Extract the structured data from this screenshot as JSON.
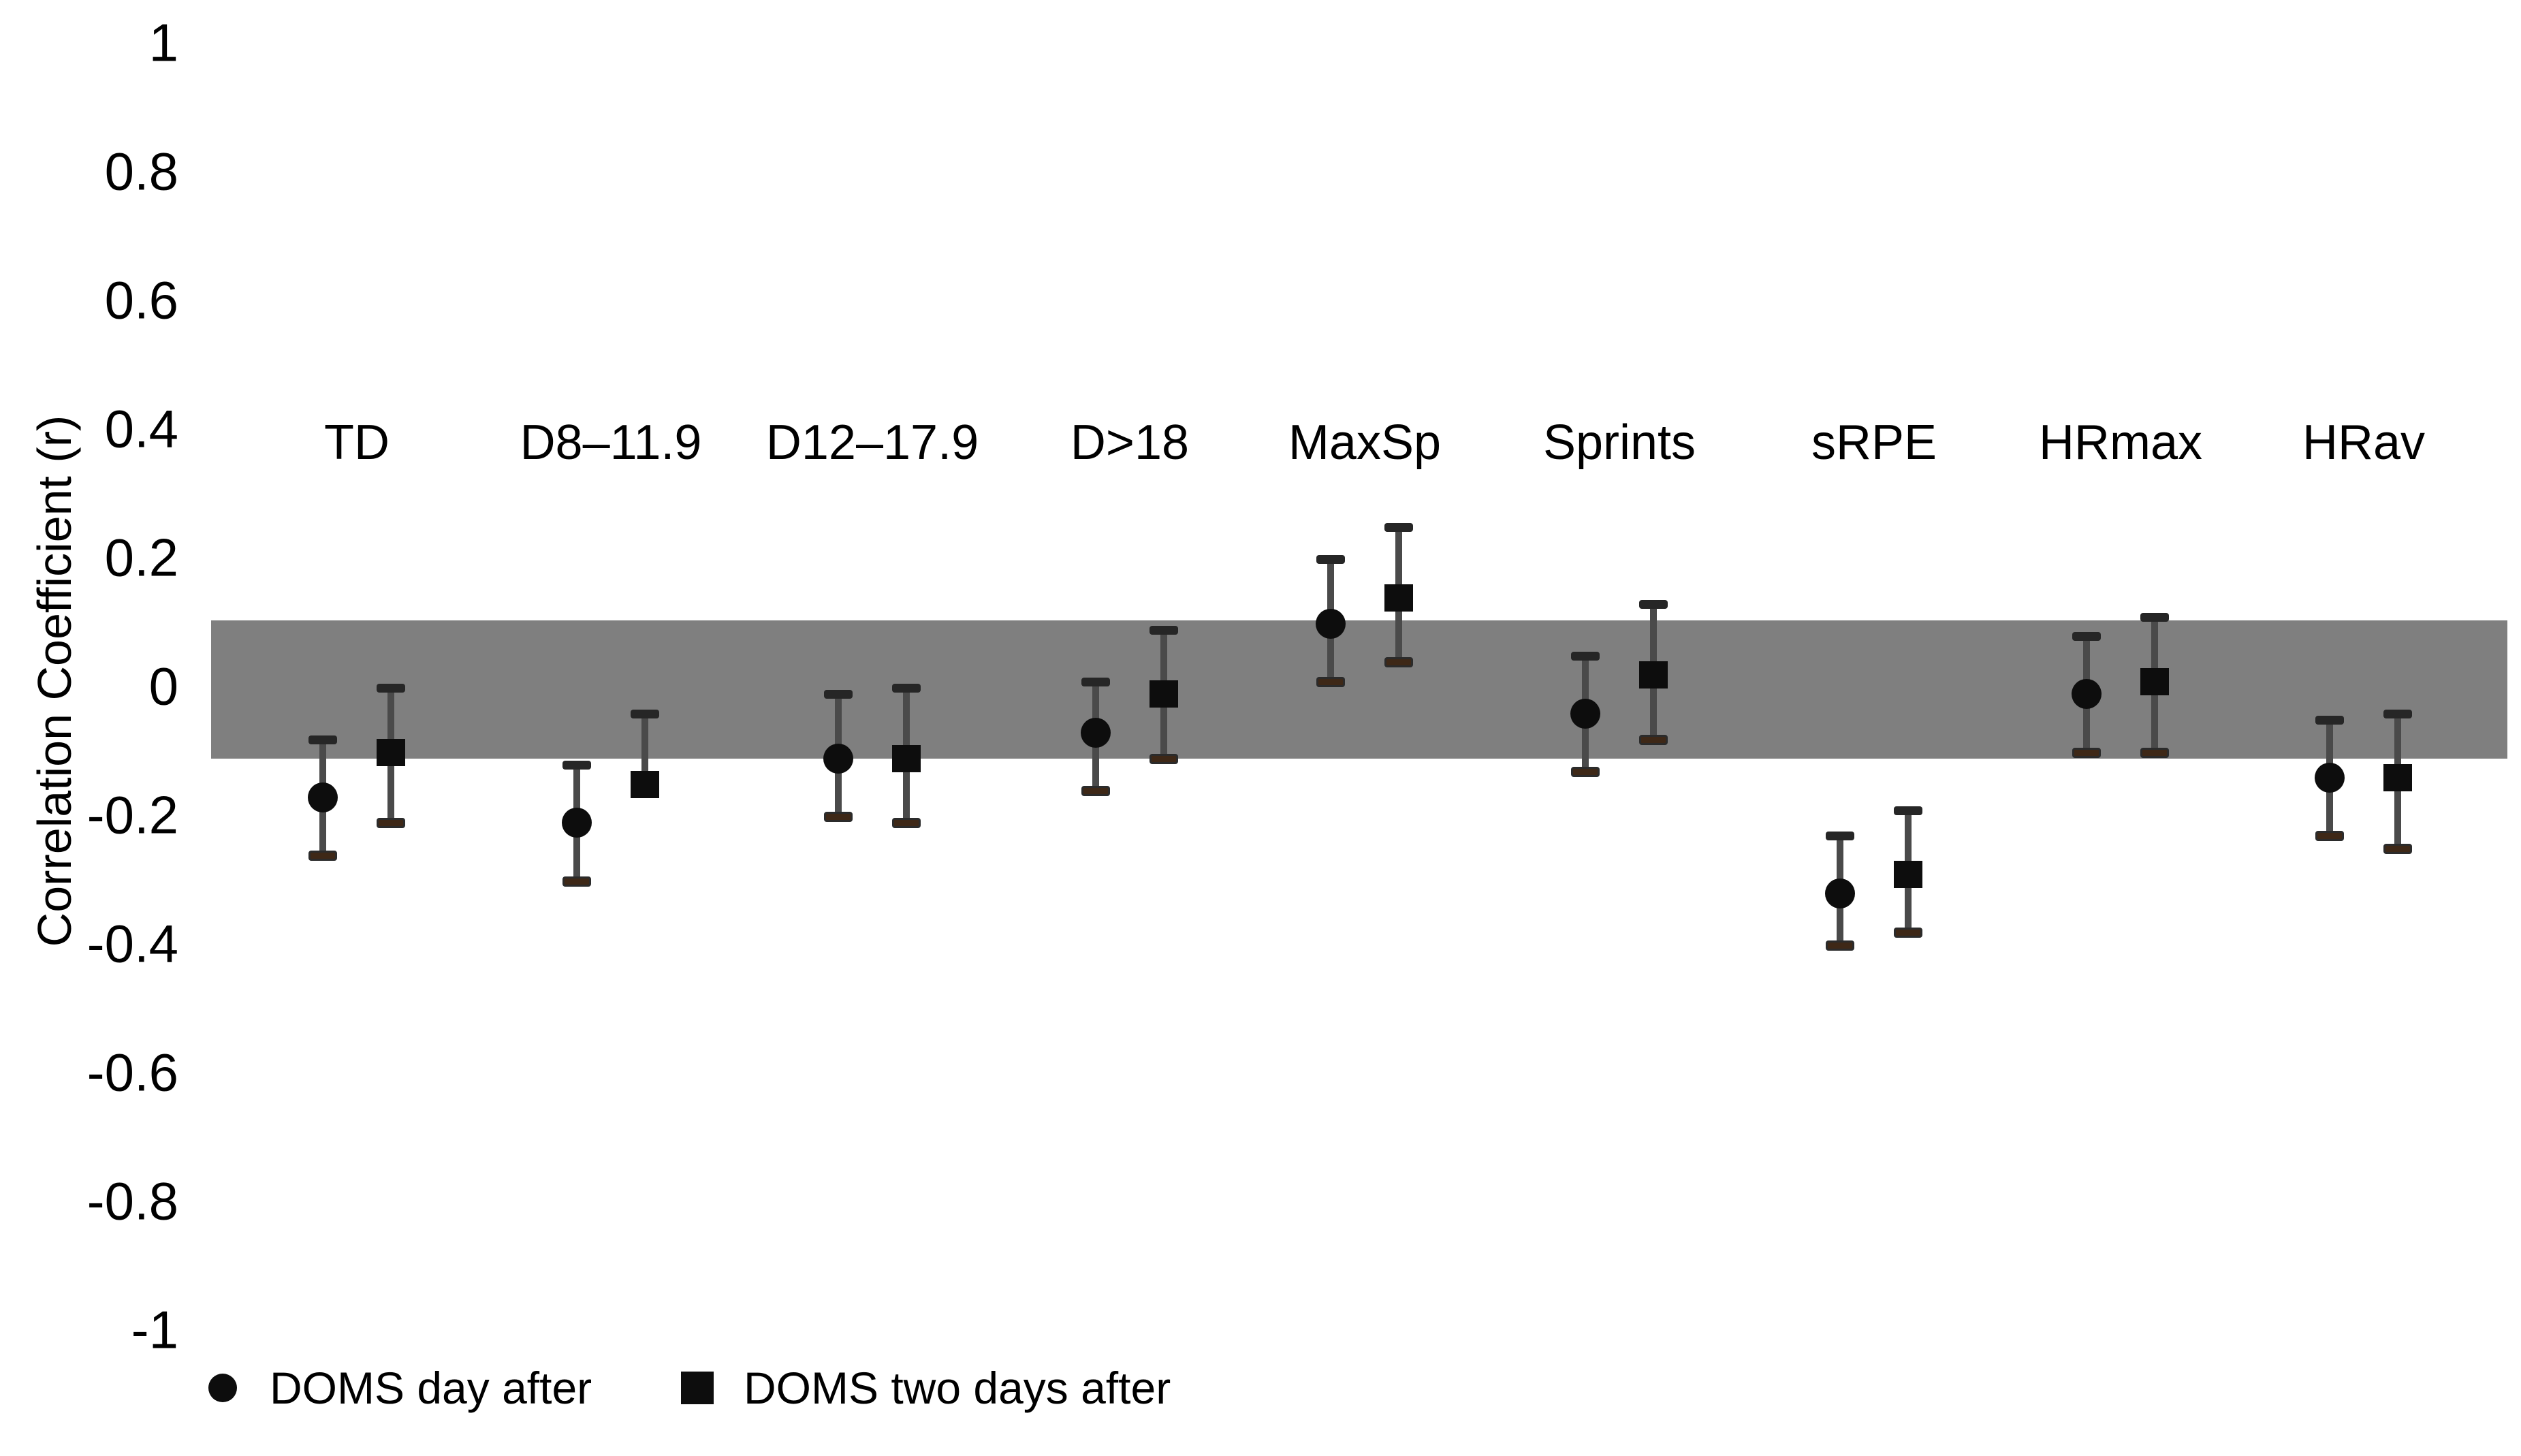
{
  "page": {
    "background_color": "#ffffff",
    "text_color": "#000000"
  },
  "colors": {
    "band": "#7f7f7f",
    "marker": "#0d0d0d",
    "error_stem": "#4a4a4a",
    "error_cap_top": "#262626",
    "error_cap_bottom": "#3e2817",
    "error_cap_bottom_border": "#2b2b2b"
  },
  "chart_data": {
    "type": "scatter",
    "subtype": "point-estimates-with-error-bars",
    "title": "",
    "ylabel": "Correlation Coefficient (r)",
    "ylim": [
      -1,
      1
    ],
    "ytick_values": [
      1,
      0.8,
      0.6,
      0.4,
      0.2,
      0,
      -0.2,
      -0.4,
      -0.6,
      -0.8,
      -1
    ],
    "ytick_labels": [
      "1",
      "0.8",
      "0.6",
      "0.4",
      "0.2",
      "0",
      "-0.2",
      "-0.4",
      "-0.6",
      "-0.8",
      "-1"
    ],
    "grid": false,
    "legend_position": "bottom-left",
    "shaded_band": {
      "from": -0.11,
      "to": 0.105,
      "color": "#7f7f7f"
    },
    "categories": [
      "TD",
      "D8–11.9",
      "D12–17.9",
      "D>18",
      "MaxSp",
      "Sprints",
      "sRPE",
      "HRmax",
      "HRav"
    ],
    "series": [
      {
        "name": "DOMS day after",
        "marker": "circle",
        "values": [
          -0.17,
          -0.21,
          -0.11,
          -0.07,
          0.1,
          -0.04,
          -0.32,
          -0.01,
          -0.14
        ],
        "ci_upper": [
          -0.08,
          -0.12,
          -0.01,
          0.01,
          0.2,
          0.05,
          -0.23,
          0.08,
          -0.05
        ],
        "ci_lower": [
          -0.26,
          -0.3,
          -0.2,
          -0.16,
          0.01,
          -0.13,
          -0.4,
          -0.1,
          -0.23
        ]
      },
      {
        "name": "DOMS two days after",
        "marker": "square",
        "values": [
          -0.1,
          -0.15,
          -0.11,
          -0.01,
          0.14,
          0.02,
          -0.29,
          0.01,
          -0.14
        ],
        "ci_upper": [
          0.0,
          -0.04,
          0.0,
          0.09,
          0.25,
          0.13,
          -0.19,
          0.11,
          -0.04
        ],
        "ci_lower": [
          -0.21,
          -0.15,
          -0.21,
          -0.11,
          0.04,
          -0.08,
          -0.38,
          -0.1,
          -0.25
        ]
      }
    ]
  }
}
